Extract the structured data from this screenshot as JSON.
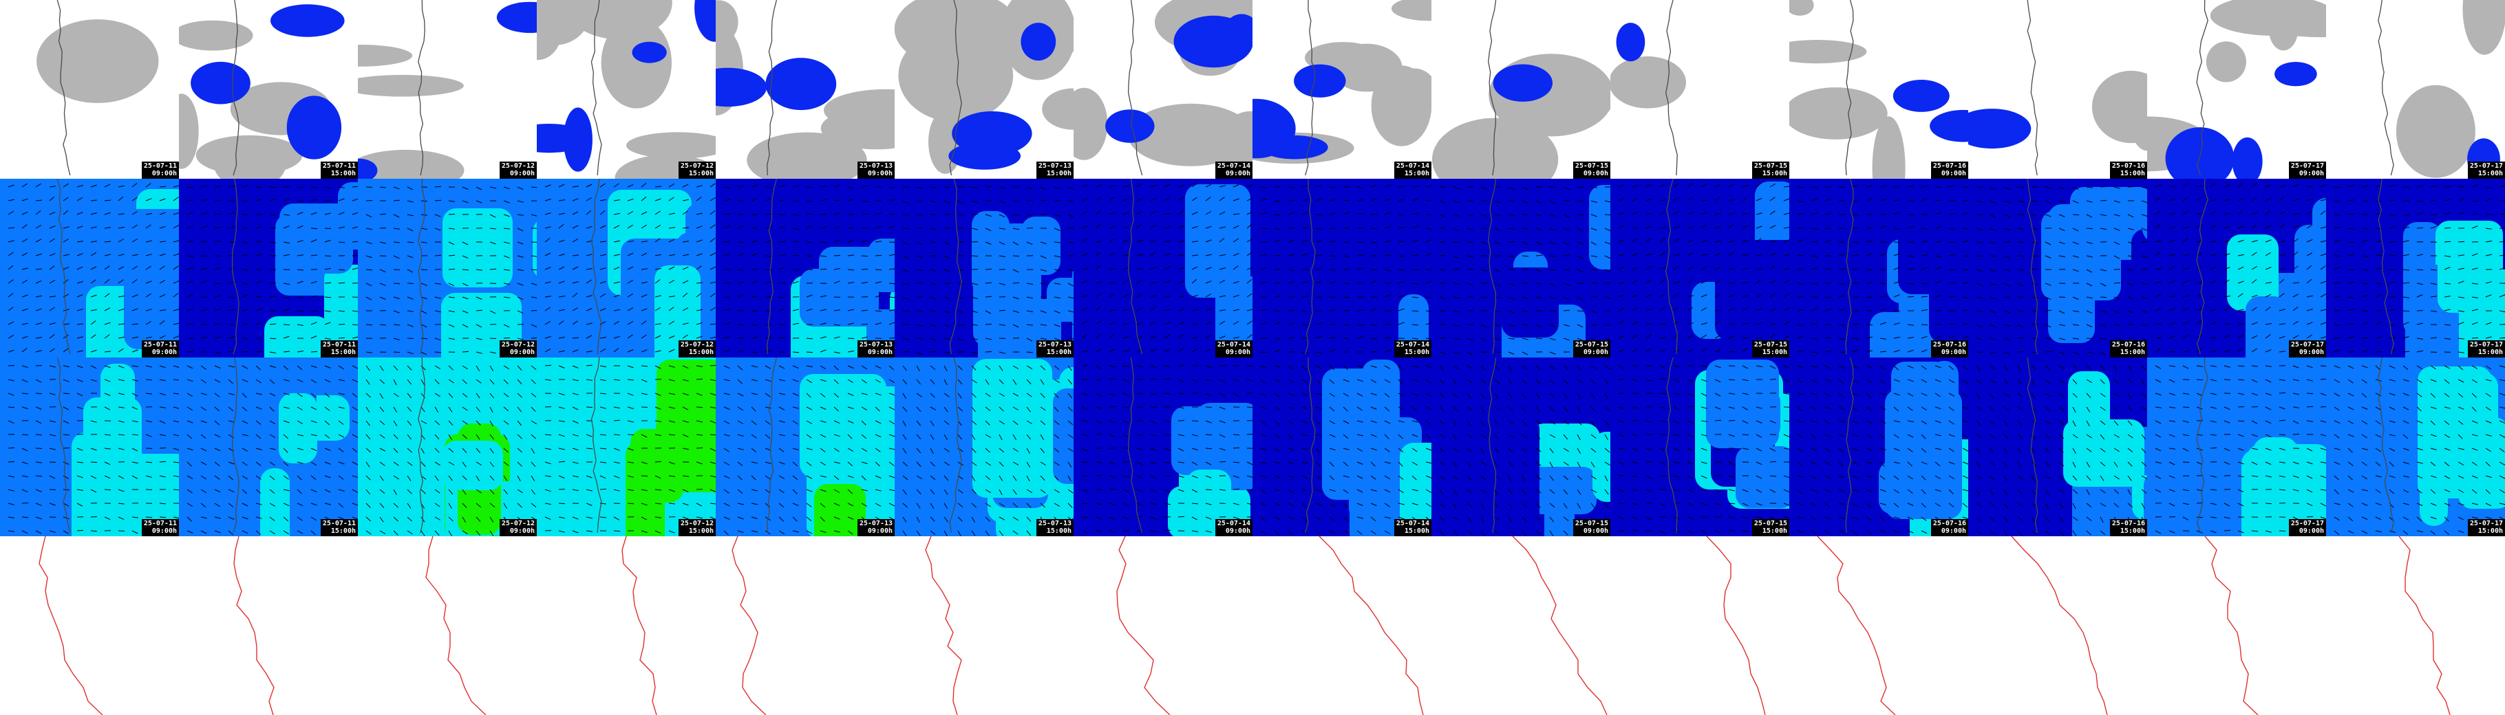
{
  "title": "",
  "rows": [
    {
      "name": "cloud-cover",
      "label_visible": false
    },
    {
      "name": "wind-850",
      "label_visible": false
    },
    {
      "name": "wind-700",
      "label_visible": false
    },
    {
      "name": "pressure-isolines",
      "label_visible": false
    }
  ],
  "columns": [
    {
      "date": "25-07-11",
      "time": "09:00h"
    },
    {
      "date": "25-07-11",
      "time": "15:00h"
    },
    {
      "date": "25-07-12",
      "time": "09:00h"
    },
    {
      "date": "25-07-12",
      "time": "15:00h"
    },
    {
      "date": "25-07-13",
      "time": "09:00h"
    },
    {
      "date": "25-07-13",
      "time": "15:00h"
    },
    {
      "date": "25-07-14",
      "time": "09:00h"
    },
    {
      "date": "25-07-14",
      "time": "15:00h"
    },
    {
      "date": "25-07-15",
      "time": "09:00h"
    },
    {
      "date": "25-07-15",
      "time": "15:00h"
    },
    {
      "date": "25-07-16",
      "time": "09:00h"
    },
    {
      "date": "25-07-16",
      "time": "15:00h"
    },
    {
      "date": "25-07-17",
      "time": "09:00h"
    },
    {
      "date": "25-07-17",
      "time": "15:00h"
    }
  ],
  "cloud_levels": [
    0.05,
    0.5,
    0.3,
    0.7,
    0.45,
    0.65,
    0.55,
    0.6,
    0.15,
    0.1,
    0.4,
    0.2,
    0.5,
    0.2
  ],
  "wind_levels_row1": [
    0.75,
    0.55,
    0.7,
    0.7,
    0.6,
    0.5,
    0.35,
    0.3,
    0.4,
    0.4,
    0.4,
    0.45,
    0.55,
    0.6
  ],
  "wind_levels_row2": [
    0.85,
    0.7,
    0.95,
    1.0,
    0.8,
    0.75,
    0.55,
    0.5,
    0.5,
    0.5,
    0.6,
    0.6,
    0.75,
    0.75
  ],
  "colors": {
    "cloud_grey": "#b4b4b4",
    "cloud_blue": "#0a28f0",
    "wind_low": "#0000c8",
    "wind_mid": "#0a78ff",
    "wind_high": "#00e6f0",
    "wind_peak": "#14f000",
    "coast": "#4a4a4a",
    "isobar": "#e03030",
    "stamp_bg": "#000000",
    "stamp_fg": "#ffffff"
  }
}
